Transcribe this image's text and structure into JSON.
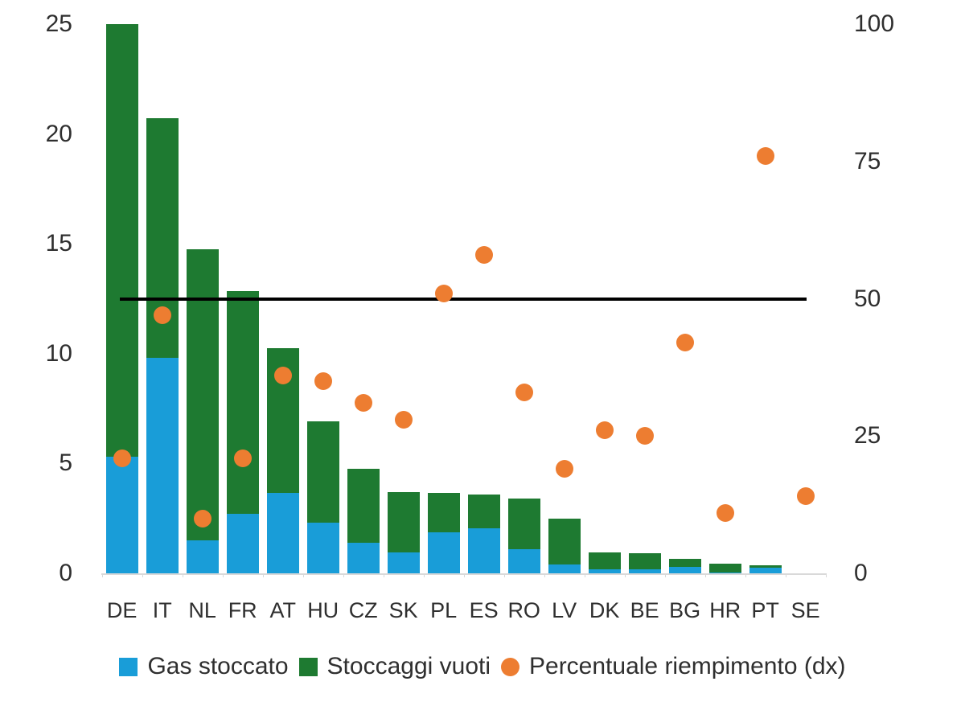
{
  "chart_data": {
    "type": "combo (stacked bar + scatter)",
    "categories": [
      "DE",
      "IT",
      "NL",
      "FR",
      "AT",
      "HU",
      "CZ",
      "SK",
      "PL",
      "ES",
      "RO",
      "LV",
      "DK",
      "BE",
      "BG",
      "HR",
      "PT",
      "SE"
    ],
    "series": [
      {
        "name": "Gas stoccato",
        "type": "bar",
        "stack": "storage",
        "axis": "left",
        "color": "#199dd8",
        "values": [
          5.3,
          9.8,
          1.5,
          2.7,
          3.65,
          2.3,
          1.4,
          0.95,
          1.85,
          2.05,
          1.1,
          0.4,
          0.2,
          0.2,
          0.3,
          0.05,
          0.27,
          0
        ]
      },
      {
        "name": "Stoccaggi vuoti",
        "type": "bar",
        "stack": "storage",
        "axis": "left",
        "color": "#1e7a31",
        "values": [
          19.7,
          10.9,
          13.25,
          10.15,
          6.6,
          4.6,
          3.35,
          2.75,
          1.8,
          1.55,
          2.3,
          2.1,
          0.75,
          0.7,
          0.35,
          0.4,
          0.11,
          0
        ]
      },
      {
        "name": "Percentuale riempimento (dx)",
        "type": "scatter",
        "axis": "right",
        "color": "#ed7d31",
        "values": [
          21,
          47,
          10,
          21,
          36,
          35,
          31,
          28,
          51,
          58,
          33,
          19,
          26,
          25,
          42,
          11,
          76,
          14
        ]
      }
    ],
    "reference_line": {
      "axis": "right",
      "value": 50,
      "color": "#000000"
    },
    "left_axis": {
      "range": [
        0,
        25
      ],
      "ticks": [
        0,
        5,
        10,
        15,
        20,
        25
      ]
    },
    "right_axis": {
      "range": [
        0,
        100
      ],
      "ticks": [
        0,
        25,
        50,
        75,
        100
      ]
    },
    "grid": false,
    "legend_position": "bottom",
    "title": "",
    "xlabel": "",
    "ylabel": ""
  },
  "colors": {
    "axis_line": "#d9d9d9",
    "text": "#2f2f2f",
    "background": "#ffffff"
  }
}
